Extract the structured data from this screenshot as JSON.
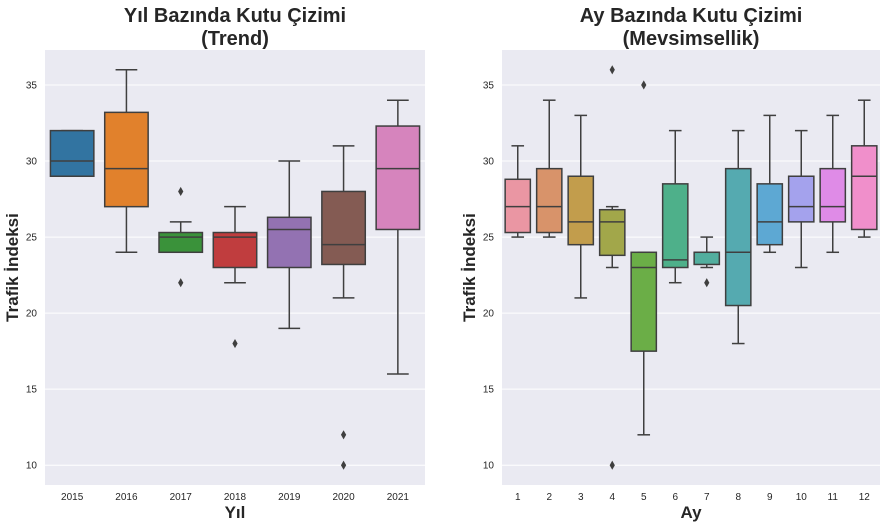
{
  "chart_data": [
    {
      "type": "box",
      "title_lines": [
        "Yıl Bazında Kutu Çizimi",
        "(Trend)"
      ],
      "xlabel": "Yıl",
      "ylabel": "Trafik İndeksi",
      "ylim": [
        8.7,
        37.3
      ],
      "yticks": [
        10,
        15,
        20,
        25,
        30,
        35
      ],
      "grid": true,
      "categories": [
        "2015",
        "2016",
        "2017",
        "2018",
        "2019",
        "2020",
        "2021"
      ],
      "colors": [
        "#3274a1",
        "#e1812c",
        "#3a923a",
        "#c03d3e",
        "#9372b2",
        "#845b53",
        "#d684bd"
      ],
      "boxes": [
        {
          "q1": 29,
          "median": 30,
          "q3": 32,
          "whisker_low": 29,
          "whisker_high": 32,
          "outliers": []
        },
        {
          "q1": 27,
          "median": 29.5,
          "q3": 33.2,
          "whisker_low": 24,
          "whisker_high": 36,
          "outliers": []
        },
        {
          "q1": 24,
          "median": 25,
          "q3": 25.3,
          "whisker_low": 24,
          "whisker_high": 26,
          "outliers": [
            28,
            22
          ]
        },
        {
          "q1": 23,
          "median": 25,
          "q3": 25.3,
          "whisker_low": 22,
          "whisker_high": 27,
          "outliers": [
            18
          ]
        },
        {
          "q1": 23,
          "median": 25.5,
          "q3": 26.3,
          "whisker_low": 19,
          "whisker_high": 30,
          "outliers": []
        },
        {
          "q1": 23.2,
          "median": 24.5,
          "q3": 28,
          "whisker_low": 21,
          "whisker_high": 31,
          "outliers": [
            12,
            10
          ]
        },
        {
          "q1": 25.5,
          "median": 29.5,
          "q3": 32.3,
          "whisker_low": 16,
          "whisker_high": 34,
          "outliers": []
        }
      ]
    },
    {
      "type": "box",
      "title_lines": [
        "Ay Bazında Kutu Çizimi",
        "(Mevsimsellik)"
      ],
      "xlabel": "Ay",
      "ylabel": "Trafik İndeksi",
      "ylim": [
        8.7,
        37.3
      ],
      "yticks": [
        10,
        15,
        20,
        25,
        30,
        35
      ],
      "grid": true,
      "categories": [
        "1",
        "2",
        "3",
        "4",
        "5",
        "6",
        "7",
        "8",
        "9",
        "10",
        "11",
        "12"
      ],
      "colors": [
        "#ea96a3",
        "#d8936a",
        "#c29d4c",
        "#a2a74a",
        "#6bae47",
        "#4eb08a",
        "#52ae9e",
        "#55aab0",
        "#5da8d3",
        "#a4a2ed",
        "#df8be7",
        "#f08fcb"
      ],
      "boxes": [
        {
          "q1": 25.3,
          "median": 27,
          "q3": 28.8,
          "whisker_low": 25,
          "whisker_high": 31,
          "outliers": []
        },
        {
          "q1": 25.3,
          "median": 27,
          "q3": 29.5,
          "whisker_low": 25,
          "whisker_high": 34,
          "outliers": []
        },
        {
          "q1": 24.5,
          "median": 26,
          "q3": 29,
          "whisker_low": 21,
          "whisker_high": 33,
          "outliers": []
        },
        {
          "q1": 23.8,
          "median": 26,
          "q3": 26.8,
          "whisker_low": 23,
          "whisker_high": 27,
          "outliers": [
            36,
            10
          ]
        },
        {
          "q1": 17.5,
          "median": 23,
          "q3": 24,
          "whisker_low": 12,
          "whisker_high": 24,
          "outliers": [
            35
          ]
        },
        {
          "q1": 23,
          "median": 23.5,
          "q3": 28.5,
          "whisker_low": 22,
          "whisker_high": 32,
          "outliers": []
        },
        {
          "q1": 23.2,
          "median": 24,
          "q3": 24,
          "whisker_low": 23,
          "whisker_high": 25,
          "outliers": [
            22
          ]
        },
        {
          "q1": 20.5,
          "median": 24,
          "q3": 29.5,
          "whisker_low": 18,
          "whisker_high": 32,
          "outliers": []
        },
        {
          "q1": 24.5,
          "median": 26,
          "q3": 28.5,
          "whisker_low": 24,
          "whisker_high": 33,
          "outliers": []
        },
        {
          "q1": 26,
          "median": 27,
          "q3": 29,
          "whisker_low": 23,
          "whisker_high": 32,
          "outliers": []
        },
        {
          "q1": 26,
          "median": 27,
          "q3": 29.5,
          "whisker_low": 24,
          "whisker_high": 33,
          "outliers": []
        },
        {
          "q1": 25.5,
          "median": 29,
          "q3": 31,
          "whisker_low": 25,
          "whisker_high": 34,
          "outliers": []
        }
      ]
    }
  ]
}
